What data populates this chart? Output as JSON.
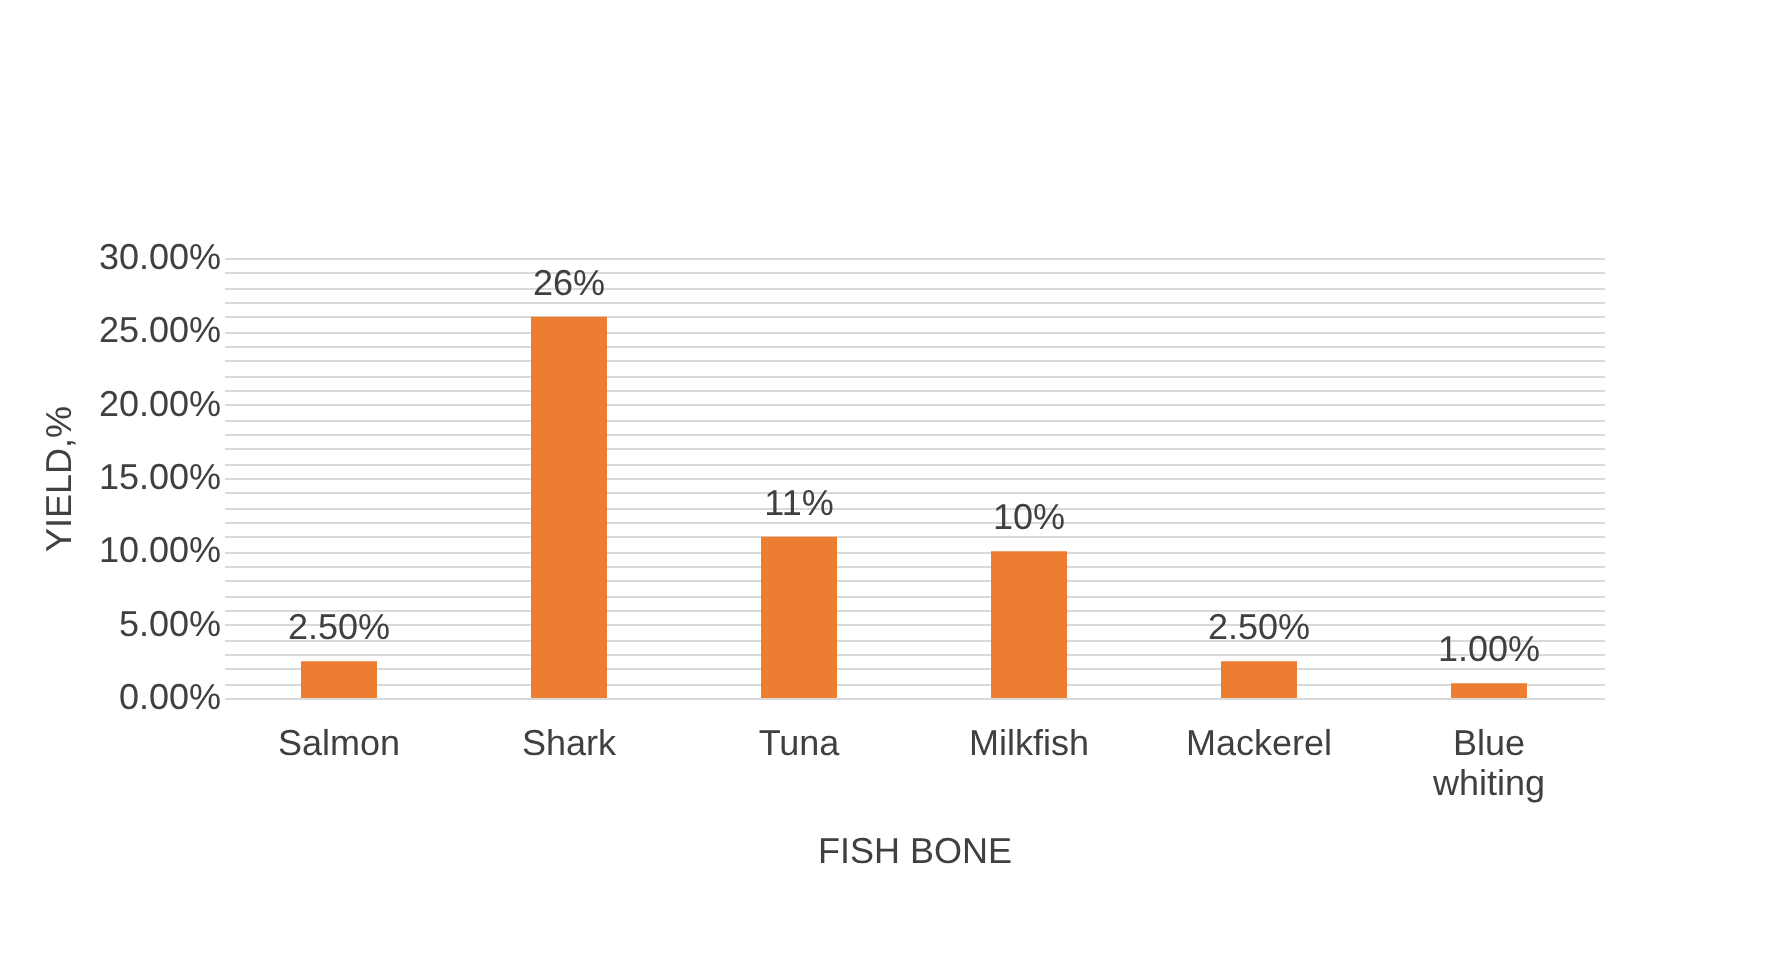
{
  "chart_data": {
    "type": "bar",
    "xlabel": "FISH BONE",
    "ylabel": "YIELD,%",
    "categories": [
      "Salmon",
      "Shark",
      "Tuna",
      "Milkfish",
      "Mackerel",
      "Blue whiting"
    ],
    "values": [
      2.5,
      26,
      11,
      10,
      2.5,
      1.0
    ],
    "color": "#ed7d31",
    "value_labels": [
      "2.50%",
      "26%",
      "11%",
      "10%",
      "2.50%",
      "1.00%"
    ],
    "ylim": [
      0,
      30
    ],
    "yticks": [
      {
        "value": 0,
        "label": "0.00%"
      },
      {
        "value": 1,
        "label": null
      },
      {
        "value": 2,
        "label": null
      },
      {
        "value": 3,
        "label": null
      },
      {
        "value": 4,
        "label": null
      },
      {
        "value": 5,
        "label": "5.00%"
      },
      {
        "value": 6,
        "label": null
      },
      {
        "value": 7,
        "label": null
      },
      {
        "value": 8,
        "label": null
      },
      {
        "value": 9,
        "label": null
      },
      {
        "value": 10,
        "label": "10.00%"
      },
      {
        "value": 11,
        "label": null
      },
      {
        "value": 12,
        "label": null
      },
      {
        "value": 13,
        "label": null
      },
      {
        "value": 14,
        "label": null
      },
      {
        "value": 15,
        "label": "15.00%"
      },
      {
        "value": 16,
        "label": null
      },
      {
        "value": 17,
        "label": null
      },
      {
        "value": 18,
        "label": null
      },
      {
        "value": 19,
        "label": null
      },
      {
        "value": 20,
        "label": "20.00%"
      },
      {
        "value": 21,
        "label": null
      },
      {
        "value": 22,
        "label": null
      },
      {
        "value": 23,
        "label": null
      },
      {
        "value": 24,
        "label": null
      },
      {
        "value": 25,
        "label": "25.00%"
      },
      {
        "value": 26,
        "label": null
      },
      {
        "value": 27,
        "label": null
      },
      {
        "value": 28,
        "label": null
      },
      {
        "value": 29,
        "label": null
      },
      {
        "value": 30,
        "label": "30.00%"
      }
    ],
    "grid": "y"
  }
}
